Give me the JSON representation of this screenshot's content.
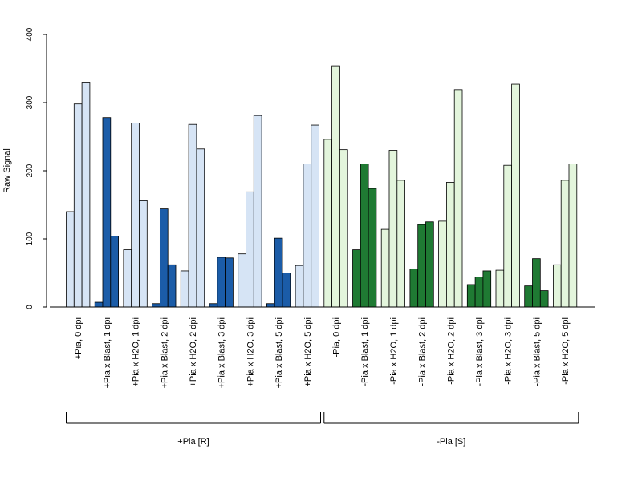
{
  "chart_data": {
    "type": "bar",
    "ylabel": "Raw Signal",
    "ylim": [
      0,
      400
    ],
    "yticks": [
      0,
      100,
      200,
      300,
      400
    ],
    "bars_per_category": 3,
    "categories": [
      "+Pia, 0 dpi",
      "+Pia x Blast, 1 dpi",
      "+Pia x H2O, 1 dpi",
      "+Pia x Blast, 2 dpi",
      "+Pia x H2O, 2 dpi",
      "+Pia x Blast, 3 dpi",
      "+Pia x H2O, 3 dpi",
      "+Pia x Blast, 5 dpi",
      "+Pia x H2O, 5 dpi",
      "-Pia, 0 dpi",
      "-Pia x Blast, 1 dpi",
      "-Pia x H2O, 1 dpi",
      "-Pia x Blast, 2 dpi",
      "-Pia x H2O, 2 dpi",
      "-Pia x Blast, 3 dpi",
      "-Pia x H2O, 3 dpi",
      "-Pia x Blast, 5 dpi",
      "-Pia x H2O, 5 dpi"
    ],
    "values": [
      [
        140,
        298,
        330
      ],
      [
        7,
        278,
        104
      ],
      [
        84,
        270,
        156
      ],
      [
        5,
        144,
        62
      ],
      [
        53,
        268,
        232
      ],
      [
        5,
        73,
        72
      ],
      [
        78,
        169,
        281
      ],
      [
        5,
        101,
        50
      ],
      [
        61,
        210,
        267
      ],
      [
        246,
        354,
        231
      ],
      [
        84,
        210,
        174
      ],
      [
        114,
        230,
        186
      ],
      [
        56,
        121,
        125
      ],
      [
        126,
        183,
        319
      ],
      [
        33,
        44,
        53
      ],
      [
        54,
        208,
        327
      ],
      [
        31,
        71,
        24
      ],
      [
        62,
        186,
        210
      ]
    ],
    "bar_colors": [
      "#d6e4f5",
      "#1b5ca8",
      "#d6e4f5",
      "#1b5ca8",
      "#d6e4f5",
      "#1b5ca8",
      "#d6e4f5",
      "#1b5ca8",
      "#d6e4f5",
      "#e3f5dc",
      "#1f7a33",
      "#e3f5dc",
      "#1f7a33",
      "#e3f5dc",
      "#1f7a33",
      "#e3f5dc",
      "#1f7a33",
      "#e3f5dc"
    ],
    "groups": [
      {
        "label": "+Pia [R]",
        "from": 0,
        "to": 8
      },
      {
        "label": "-Pia [S]",
        "from": 9,
        "to": 17
      }
    ],
    "grid": false
  }
}
